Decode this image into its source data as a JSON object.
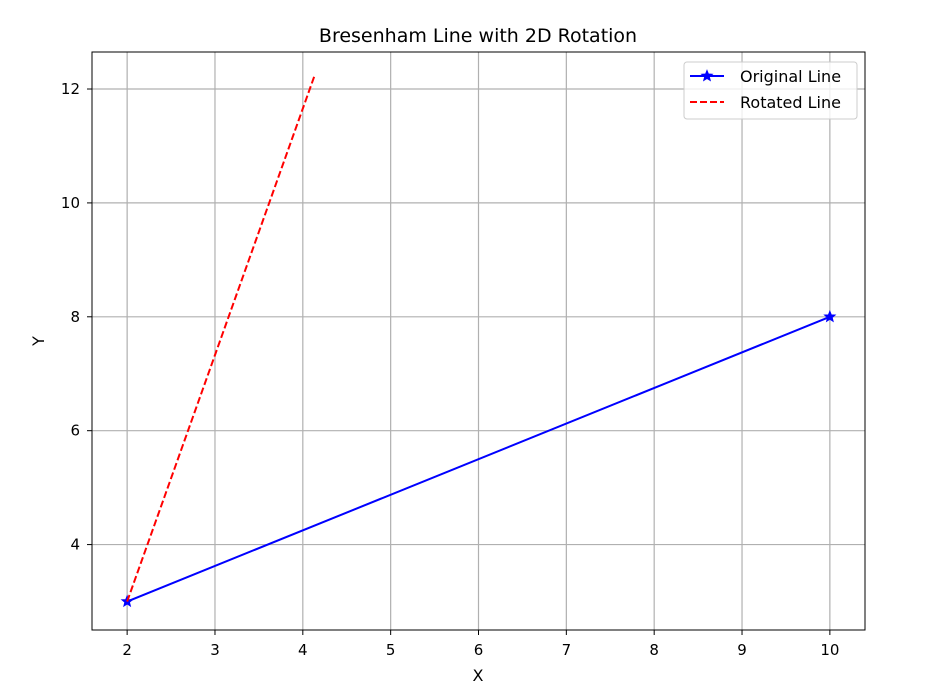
{
  "chart_data": {
    "type": "line",
    "title": "Bresenham Line with 2D Rotation",
    "xlabel": "X",
    "ylabel": "Y",
    "xlim": [
      1.6,
      10.4
    ],
    "ylim": [
      2.5,
      12.65
    ],
    "xticks": [
      2,
      3,
      4,
      5,
      6,
      7,
      8,
      9,
      10
    ],
    "yticks": [
      4,
      6,
      8,
      10,
      12
    ],
    "grid": true,
    "legend_position": "top-right",
    "series": [
      {
        "name": "Original Line",
        "color": "#0000ff",
        "line_style": "solid",
        "marker": "star",
        "x": [
          2,
          10
        ],
        "y": [
          3,
          8
        ]
      },
      {
        "name": "Rotated Line",
        "color": "#ff0000",
        "line_style": "dashed",
        "marker": "none",
        "x": [
          2,
          4.13
        ],
        "y": [
          3,
          12.22
        ]
      }
    ]
  }
}
